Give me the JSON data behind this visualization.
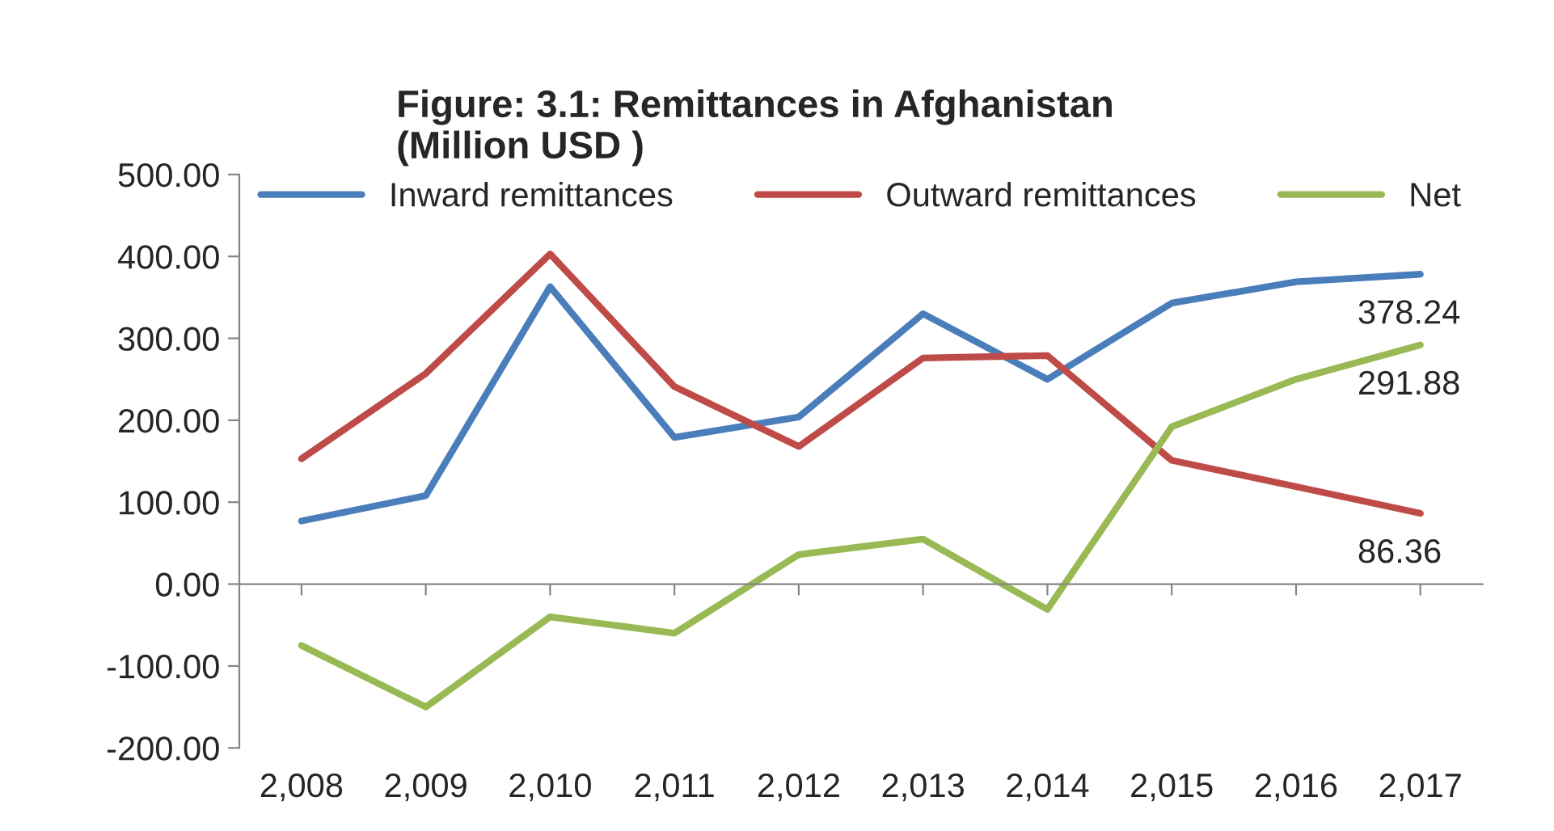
{
  "chart_data": {
    "type": "line",
    "title": "Figure: 3.1: Remittances in Afghanistan\n(Million USD )",
    "categories": [
      "2,008",
      "2,009",
      "2,010",
      "2,011",
      "2,012",
      "2,013",
      "2,014",
      "2,015",
      "2,016",
      "2,017"
    ],
    "series": [
      {
        "name": "Inward remittances",
        "color": "#4a7ebb",
        "values": [
          77,
          108,
          363,
          179,
          204,
          330,
          250,
          343,
          369,
          378.24
        ],
        "value_labels": [
          null,
          null,
          null,
          null,
          null,
          null,
          null,
          null,
          null,
          "378.24"
        ]
      },
      {
        "name": "Outward remittances",
        "color": "#be4b48",
        "values": [
          153,
          257,
          403,
          241,
          168,
          276,
          279,
          151,
          119,
          86.36
        ],
        "value_labels": [
          null,
          null,
          null,
          null,
          null,
          null,
          null,
          null,
          null,
          "86.36"
        ]
      },
      {
        "name": "Net",
        "color": "#98b954",
        "values": [
          -75,
          -150,
          -40,
          -60,
          36,
          55,
          -31,
          192,
          250,
          291.88
        ],
        "value_labels": [
          null,
          null,
          null,
          null,
          null,
          null,
          null,
          null,
          null,
          "291.88"
        ]
      }
    ],
    "ylim": [
      -200,
      500
    ],
    "yticks": [
      {
        "value": -200,
        "label": "-200.00"
      },
      {
        "value": -100,
        "label": "-100.00"
      },
      {
        "value": 0,
        "label": "0.00"
      },
      {
        "value": 100,
        "label": "100.00"
      },
      {
        "value": 200,
        "label": "200.00"
      },
      {
        "value": 300,
        "label": "300.00"
      },
      {
        "value": 400,
        "label": "400.00"
      },
      {
        "value": 500,
        "label": "500.00"
      }
    ],
    "legend": "top",
    "marker": "none",
    "line_style": "solid"
  }
}
